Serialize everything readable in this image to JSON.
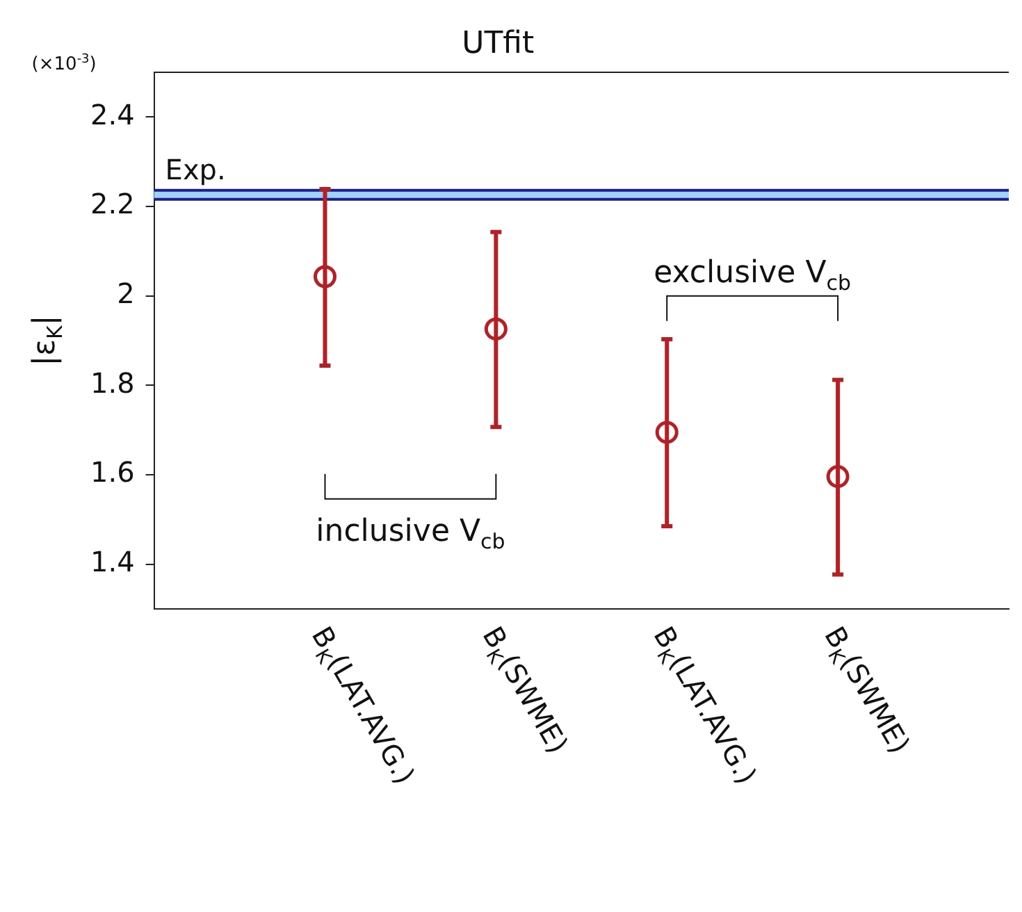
{
  "chart_data": {
    "type": "scatter",
    "title": "UTfit",
    "ylabel": "|ε$_{K}$|",
    "categories": [
      null,
      "B$_{K}$(LAT.AVG.)",
      "B$_{K}$(SWME)",
      "B$_{K}$(LAT.AVG.)",
      "B$_{K}$(SWME)",
      null
    ],
    "series": [
      {
        "color": "#b52025",
        "values": [
          null,
          2.043,
          1.926,
          1.695,
          1.596,
          null
        ],
        "errors": [
          null,
          [
            1.844,
            2.239
          ],
          [
            1.707,
            2.143
          ],
          [
            1.485,
            1.903
          ],
          [
            1.377,
            1.812
          ],
          null
        ]
      }
    ],
    "ylim": [
      1.3,
      2.5
    ],
    "yticks": [
      1.4,
      1.6,
      1.8,
      2,
      2.2,
      2.4
    ],
    "grid": false,
    "legend": false,
    "marker": "circle",
    "bands": [
      {
        "axis": "y",
        "from": 2.216,
        "to": 2.236,
        "label": "Exp.",
        "color": "#9fd3ff"
      }
    ],
    "ref_lines": [
      {
        "axis": "y",
        "value": 2.236,
        "color": "#1c1c8a"
      },
      {
        "axis": "y",
        "value": 2.216,
        "color": "#1c1c8a"
      }
    ],
    "annotations": [
      "(×10$^{-3}$)",
      "inclusive V$_{cb}$",
      "exclusive V$_{cb}$"
    ]
  }
}
